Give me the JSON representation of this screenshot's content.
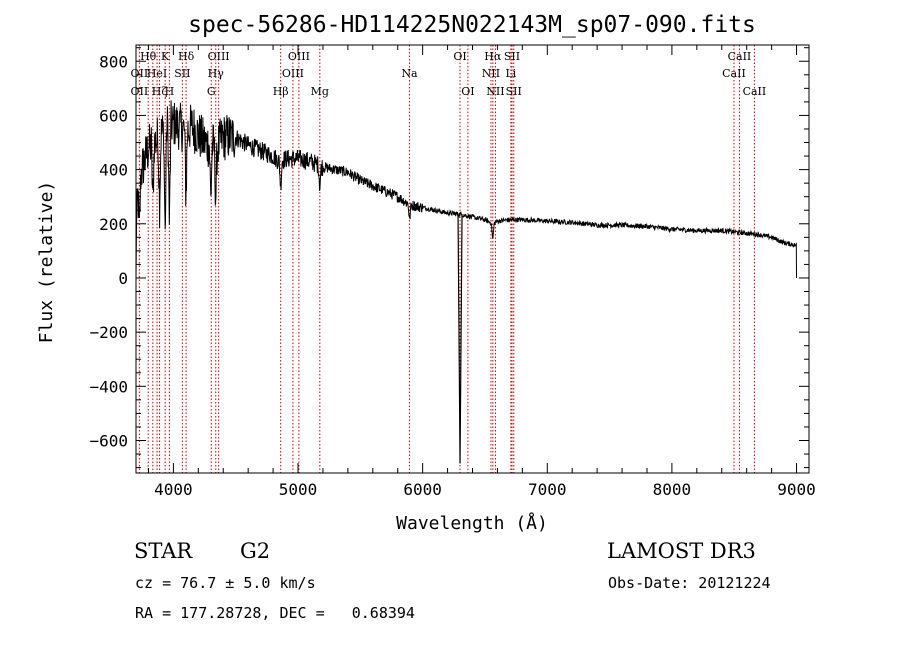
{
  "chart_data": {
    "type": "line",
    "title": "spec-56286-HD114225N022143M_sp07-090.fits",
    "xlabel": "Wavelength (Å)",
    "ylabel": "Flux (relative)",
    "xlim": [
      3700,
      9100
    ],
    "ylim": [
      -720,
      860
    ],
    "x_ticks": [
      4000,
      5000,
      6000,
      7000,
      8000,
      9000
    ],
    "x_tick_labels": [
      "4000",
      "5000",
      "6000",
      "7000",
      "8000",
      "9000"
    ],
    "y_ticks": [
      -600,
      -400,
      -200,
      0,
      200,
      400,
      600,
      800
    ],
    "y_tick_labels": [
      "−600",
      "−400",
      "−200",
      "0",
      "200",
      "400",
      "600",
      "800"
    ],
    "spectrum_outline": {
      "x": [
        3700,
        3720,
        3760,
        3800,
        3850,
        3900,
        3950,
        4000,
        4050,
        4100,
        4150,
        4200,
        4250,
        4300,
        4350,
        4400,
        4500,
        4600,
        4700,
        4800,
        4850,
        4900,
        5000,
        5100,
        5200,
        5300,
        5400,
        5500,
        5600,
        5700,
        5800,
        5900,
        6000,
        6100,
        6200,
        6300,
        6350,
        6400,
        6500,
        6563,
        6600,
        6700,
        6800,
        7000,
        7200,
        7400,
        7600,
        7800,
        8000,
        8200,
        8400,
        8500,
        8600,
        8700,
        8800,
        8900,
        9000
      ],
      "y": [
        150,
        350,
        420,
        480,
        500,
        530,
        560,
        570,
        560,
        540,
        560,
        530,
        500,
        490,
        480,
        520,
        520,
        490,
        470,
        450,
        430,
        440,
        440,
        430,
        410,
        400,
        390,
        360,
        340,
        320,
        300,
        270,
        260,
        250,
        240,
        235,
        230,
        225,
        215,
        200,
        210,
        215,
        215,
        210,
        205,
        195,
        195,
        190,
        180,
        175,
        175,
        170,
        165,
        160,
        150,
        130,
        120
      ]
    },
    "absorption_features": [
      {
        "x": 3727,
        "depth": 200
      },
      {
        "x": 3835,
        "depth": 220
      },
      {
        "x": 3889,
        "depth": 250
      },
      {
        "x": 3934,
        "depth": 400
      },
      {
        "x": 3968,
        "depth": 380
      },
      {
        "x": 4101,
        "depth": 250
      },
      {
        "x": 4300,
        "depth": 200
      },
      {
        "x": 4340,
        "depth": 200
      },
      {
        "x": 4861,
        "depth": 100
      },
      {
        "x": 5175,
        "depth": 80
      },
      {
        "x": 5895,
        "depth": 60
      },
      {
        "x": 6300,
        "depth": 920
      },
      {
        "x": 6563,
        "depth": 60
      }
    ],
    "spectral_lines": [
      {
        "x": 3727,
        "top_label": "",
        "mid_label": "OII",
        "bot_label": "OII"
      },
      {
        "x": 3798,
        "top_label": "Hθ",
        "mid_label": "",
        "bot_label": ""
      },
      {
        "x": 3835,
        "top_label": "",
        "mid_label": "",
        "bot_label": ""
      },
      {
        "x": 3869,
        "top_label": "",
        "mid_label": "HeI",
        "bot_label": ""
      },
      {
        "x": 3889,
        "top_label": "",
        "mid_label": "",
        "bot_label": "Hζ"
      },
      {
        "x": 3934,
        "top_label": "K",
        "mid_label": "",
        "bot_label": ""
      },
      {
        "x": 3968,
        "top_label": "",
        "mid_label": "",
        "bot_label": "H"
      },
      {
        "x": 4072,
        "top_label": "",
        "mid_label": "SII",
        "bot_label": ""
      },
      {
        "x": 4102,
        "top_label": "Hδ",
        "mid_label": "",
        "bot_label": ""
      },
      {
        "x": 4304,
        "top_label": "",
        "mid_label": "",
        "bot_label": "G"
      },
      {
        "x": 4340,
        "top_label": "",
        "mid_label": "Hγ",
        "bot_label": ""
      },
      {
        "x": 4363,
        "top_label": "OIII",
        "mid_label": "",
        "bot_label": ""
      },
      {
        "x": 4861,
        "top_label": "",
        "mid_label": "",
        "bot_label": "Hβ"
      },
      {
        "x": 4959,
        "top_label": "",
        "mid_label": "OIII",
        "bot_label": ""
      },
      {
        "x": 5007,
        "top_label": "OIII",
        "mid_label": "",
        "bot_label": ""
      },
      {
        "x": 5175,
        "top_label": "",
        "mid_label": "",
        "bot_label": "Mg"
      },
      {
        "x": 5894,
        "top_label": "",
        "mid_label": "Na",
        "bot_label": ""
      },
      {
        "x": 6300,
        "top_label": "OI",
        "mid_label": "",
        "bot_label": ""
      },
      {
        "x": 6363,
        "top_label": "",
        "mid_label": "",
        "bot_label": "OI"
      },
      {
        "x": 6548,
        "top_label": "",
        "mid_label": "NII",
        "bot_label": ""
      },
      {
        "x": 6563,
        "top_label": "Hα",
        "mid_label": "",
        "bot_label": ""
      },
      {
        "x": 6584,
        "top_label": "",
        "mid_label": "",
        "bot_label": "NII"
      },
      {
        "x": 6708,
        "top_label": "",
        "mid_label": "Li",
        "bot_label": ""
      },
      {
        "x": 6717,
        "top_label": "SII",
        "mid_label": "",
        "bot_label": ""
      },
      {
        "x": 6731,
        "top_label": "",
        "mid_label": "",
        "bot_label": "SII"
      },
      {
        "x": 8498,
        "top_label": "",
        "mid_label": "CaII",
        "bot_label": ""
      },
      {
        "x": 8542,
        "top_label": "CaII",
        "mid_label": "",
        "bot_label": ""
      },
      {
        "x": 8662,
        "top_label": "",
        "mid_label": "",
        "bot_label": "CaII"
      }
    ],
    "line_color": "#000000",
    "marker_color": "#cc0000",
    "grid": false
  },
  "info": {
    "object_type": "STAR",
    "subclass": "G2",
    "survey": "LAMOST DR3",
    "cz": "cz = 76.7 ± 5.0 km/s",
    "obs_date": "Obs-Date: 20121224",
    "coords": "RA = 177.28728, DEC =   0.68394"
  }
}
